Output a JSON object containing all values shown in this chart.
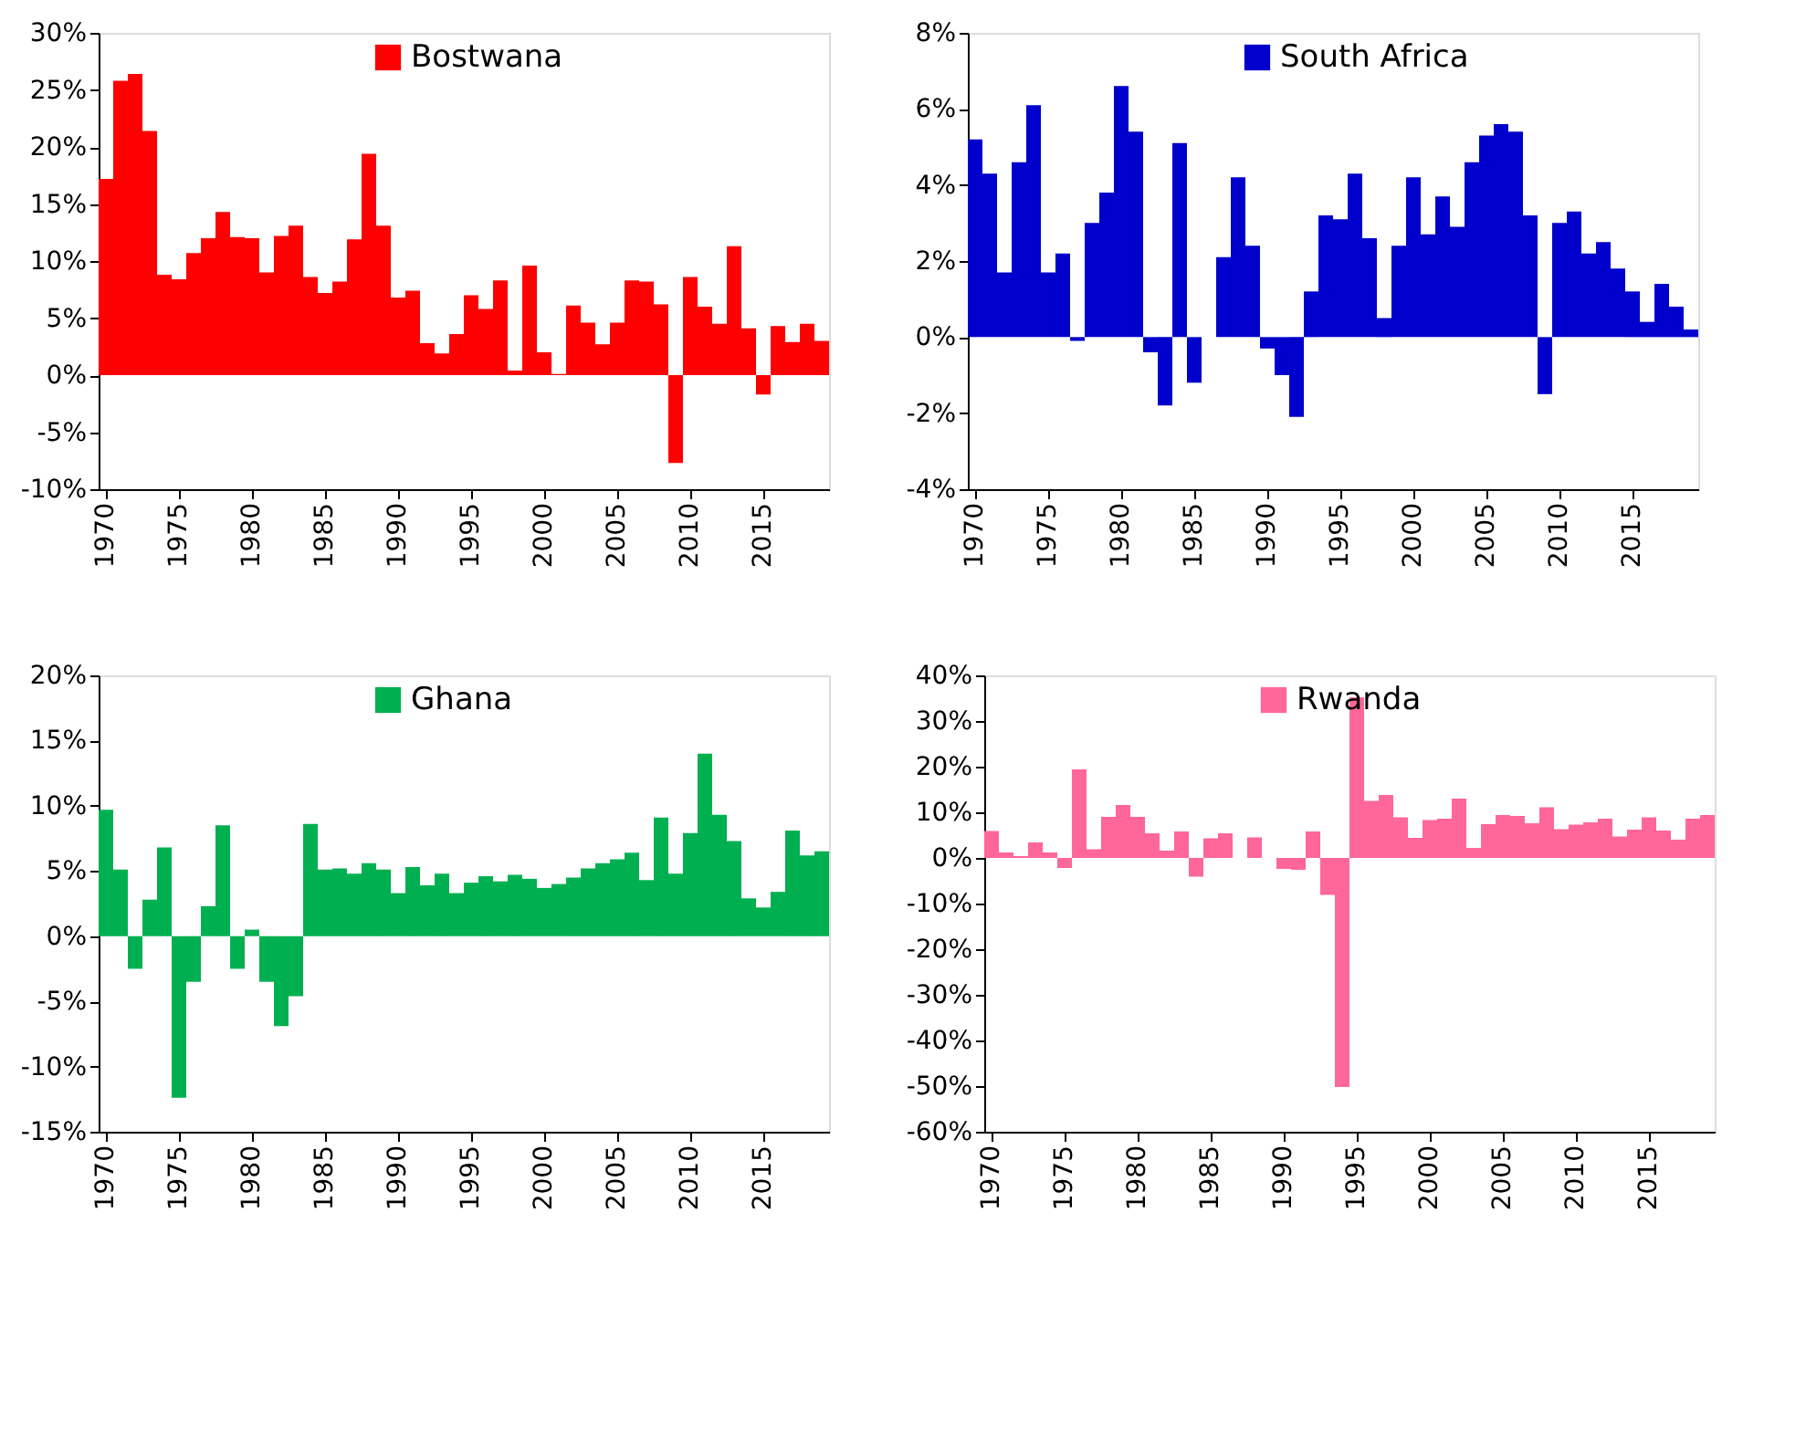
{
  "chart_data": [
    {
      "type": "bar",
      "categories": [
        "1970",
        null,
        null,
        null,
        null,
        "1975",
        null,
        null,
        null,
        null,
        "1980",
        null,
        null,
        null,
        null,
        "1985",
        null,
        null,
        null,
        null,
        "1990",
        null,
        null,
        null,
        null,
        "1995",
        null,
        null,
        null,
        null,
        "2000",
        null,
        null,
        null,
        null,
        "2005",
        null,
        null,
        null,
        null,
        "2010",
        null,
        null,
        null,
        null,
        "2015",
        null,
        null,
        null,
        null
      ],
      "series": [
        {
          "name": "Bostwana",
          "color": "#ff0000",
          "values": [
            17.2,
            25.8,
            26.4,
            21.4,
            8.8,
            8.4,
            10.7,
            12.0,
            14.3,
            12.1,
            12.0,
            9.0,
            12.2,
            13.1,
            8.6,
            7.2,
            8.2,
            11.9,
            19.4,
            13.1,
            6.8,
            7.4,
            2.8,
            1.9,
            3.6,
            7.0,
            5.8,
            8.3,
            0.4,
            9.6,
            2.0,
            0.1,
            6.1,
            4.6,
            2.7,
            4.6,
            8.3,
            8.2,
            6.2,
            -7.7,
            8.6,
            6.0,
            4.5,
            11.3,
            4.1,
            -1.7,
            4.3,
            2.9,
            4.5,
            3.0
          ]
        }
      ],
      "ylim": [
        -10,
        30
      ],
      "yticks": [
        {
          "value": -10,
          "label": "-10%"
        },
        {
          "value": -5,
          "label": "-5%"
        },
        {
          "value": 0,
          "label": "0%"
        },
        {
          "value": 5,
          "label": "5%"
        },
        {
          "value": 10,
          "label": "10%"
        },
        {
          "value": 15,
          "label": "15%"
        },
        {
          "value": 20,
          "label": "20%"
        },
        {
          "value": 25,
          "label": "25%"
        },
        {
          "value": 30,
          "label": "30%"
        }
      ],
      "legend": "top",
      "grid": false
    },
    {
      "type": "bar",
      "categories": [
        "1970",
        null,
        null,
        null,
        null,
        "1975",
        null,
        null,
        null,
        null,
        "1980",
        null,
        null,
        null,
        null,
        "1985",
        null,
        null,
        null,
        null,
        "1990",
        null,
        null,
        null,
        null,
        "1995",
        null,
        null,
        null,
        null,
        "2000",
        null,
        null,
        null,
        null,
        "2005",
        null,
        null,
        null,
        null,
        "2010",
        null,
        null,
        null,
        null,
        "2015",
        null,
        null,
        null,
        null
      ],
      "series": [
        {
          "name": "South Africa",
          "color": "#0000cc",
          "values": [
            5.2,
            4.3,
            1.7,
            4.6,
            6.1,
            1.7,
            2.2,
            -0.1,
            3.0,
            3.8,
            6.6,
            5.4,
            -0.4,
            -1.8,
            5.1,
            -1.2,
            0.0,
            2.1,
            4.2,
            2.4,
            -0.3,
            -1.0,
            -2.1,
            1.2,
            3.2,
            3.1,
            4.3,
            2.6,
            0.5,
            2.4,
            4.2,
            2.7,
            3.7,
            2.9,
            4.6,
            5.3,
            5.6,
            5.4,
            3.2,
            -1.5,
            3.0,
            3.3,
            2.2,
            2.5,
            1.8,
            1.2,
            0.4,
            1.4,
            0.8,
            0.2
          ]
        }
      ],
      "ylim": [
        -4,
        8
      ],
      "yticks": [
        {
          "value": -4,
          "label": "-4%"
        },
        {
          "value": -2,
          "label": "-2%"
        },
        {
          "value": 0,
          "label": "0%"
        },
        {
          "value": 2,
          "label": "2%"
        },
        {
          "value": 4,
          "label": "4%"
        },
        {
          "value": 6,
          "label": "6%"
        },
        {
          "value": 8,
          "label": "8%"
        }
      ],
      "legend": "top",
      "grid": false
    },
    {
      "type": "bar",
      "categories": [
        "1970",
        null,
        null,
        null,
        null,
        "1975",
        null,
        null,
        null,
        null,
        "1980",
        null,
        null,
        null,
        null,
        "1985",
        null,
        null,
        null,
        null,
        "1990",
        null,
        null,
        null,
        null,
        "1995",
        null,
        null,
        null,
        null,
        "2000",
        null,
        null,
        null,
        null,
        "2005",
        null,
        null,
        null,
        null,
        "2010",
        null,
        null,
        null,
        null,
        "2015",
        null,
        null,
        null,
        null
      ],
      "series": [
        {
          "name": "Ghana",
          "color": "#00b050",
          "values": [
            9.7,
            5.1,
            -2.5,
            2.8,
            6.8,
            -12.4,
            -3.5,
            2.3,
            8.5,
            -2.5,
            0.5,
            -3.5,
            -6.9,
            -4.6,
            8.6,
            5.1,
            5.2,
            4.8,
            5.6,
            5.1,
            3.3,
            5.3,
            3.9,
            4.8,
            3.3,
            4.1,
            4.6,
            4.2,
            4.7,
            4.4,
            3.7,
            4.0,
            4.5,
            5.2,
            5.6,
            5.9,
            6.4,
            4.3,
            9.1,
            4.8,
            7.9,
            14.0,
            9.3,
            7.3,
            2.9,
            2.2,
            3.4,
            8.1,
            6.2,
            6.5
          ]
        }
      ],
      "ylim": [
        -15,
        20
      ],
      "yticks": [
        {
          "value": -15,
          "label": "-15%"
        },
        {
          "value": -10,
          "label": "-10%"
        },
        {
          "value": -5,
          "label": "-5%"
        },
        {
          "value": 0,
          "label": "0%"
        },
        {
          "value": 5,
          "label": "5%"
        },
        {
          "value": 10,
          "label": "10%"
        },
        {
          "value": 15,
          "label": "15%"
        },
        {
          "value": 20,
          "label": "20%"
        }
      ],
      "legend": "top",
      "grid": false
    },
    {
      "type": "bar",
      "categories": [
        "1970",
        null,
        null,
        null,
        null,
        "1975",
        null,
        null,
        null,
        null,
        "1980",
        null,
        null,
        null,
        null,
        "1985",
        null,
        null,
        null,
        null,
        "1990",
        null,
        null,
        null,
        null,
        "1995",
        null,
        null,
        null,
        null,
        "2000",
        null,
        null,
        null,
        null,
        "2005",
        null,
        null,
        null,
        null,
        "2010",
        null,
        null,
        null,
        null,
        "2015",
        null,
        null,
        null,
        null
      ],
      "series": [
        {
          "name": "Rwanda",
          "color": "#ff6699",
          "values": [
            5.9,
            1.2,
            0.4,
            3.4,
            1.2,
            -2.2,
            19.4,
            1.9,
            9.0,
            11.6,
            9.0,
            5.4,
            1.6,
            5.8,
            -4.1,
            4.3,
            5.4,
            null,
            4.5,
            null,
            -2.4,
            -2.6,
            5.8,
            -8.1,
            -50.2,
            35.2,
            12.5,
            13.8,
            8.9,
            4.4,
            8.3,
            8.6,
            13.0,
            2.2,
            7.4,
            9.4,
            9.2,
            7.6,
            11.1,
            6.3,
            7.3,
            7.8,
            8.6,
            4.7,
            6.2,
            8.9,
            6.0,
            4.0,
            8.6,
            9.4
          ]
        }
      ],
      "ylim": [
        -60,
        40
      ],
      "yticks": [
        {
          "value": -60,
          "label": "-60%"
        },
        {
          "value": -50,
          "label": "-50%"
        },
        {
          "value": -40,
          "label": "-40%"
        },
        {
          "value": -30,
          "label": "-30%"
        },
        {
          "value": -20,
          "label": "-20%"
        },
        {
          "value": -10,
          "label": "-10%"
        },
        {
          "value": 0,
          "label": "0%"
        },
        {
          "value": 10,
          "label": "10%"
        },
        {
          "value": 20,
          "label": "20%"
        },
        {
          "value": 30,
          "label": "30%"
        },
        {
          "value": 40,
          "label": "40%"
        }
      ],
      "legend": "top",
      "grid": false
    }
  ]
}
